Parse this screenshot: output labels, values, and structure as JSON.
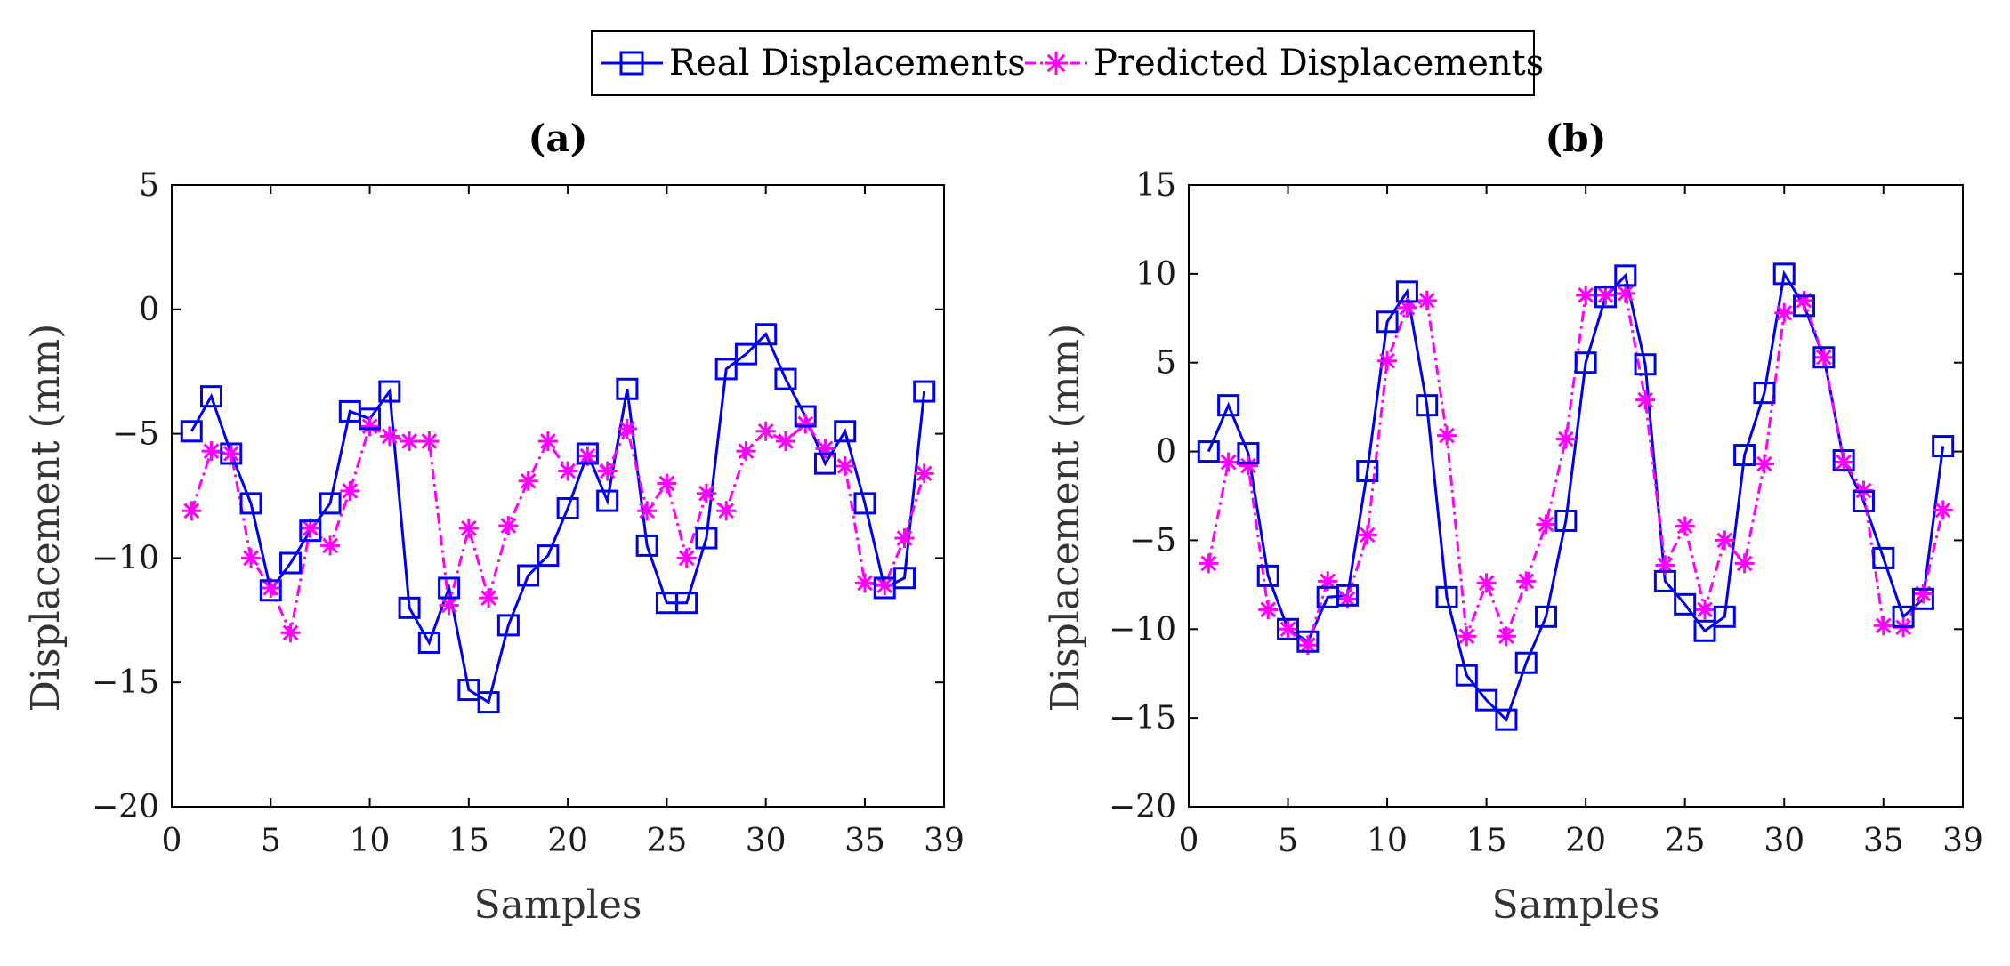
{
  "legend": {
    "real_label": "Real Displacements",
    "pred_label": "Predicted Displacements",
    "real_color": "#0000ee",
    "pred_color": "#ff00ff"
  },
  "chart_data": [
    {
      "type": "line",
      "title": "(a)",
      "xlabel": "Samples",
      "ylabel": "Displacement (mm)",
      "xlim": [
        0,
        39
      ],
      "ylim": [
        -20,
        5
      ],
      "xticks": [
        0,
        5,
        10,
        15,
        20,
        25,
        30,
        35,
        39
      ],
      "yticks": [
        5,
        0,
        -5,
        -10,
        -15,
        -20
      ],
      "ytick_labels": [
        "5",
        "0",
        "−5",
        "−10",
        "−15",
        "−20"
      ],
      "x": [
        1,
        2,
        3,
        4,
        5,
        6,
        7,
        8,
        9,
        10,
        11,
        12,
        13,
        14,
        15,
        16,
        17,
        18,
        19,
        20,
        21,
        22,
        23,
        24,
        25,
        26,
        27,
        28,
        29,
        30,
        31,
        32,
        33,
        34,
        35,
        36,
        37,
        38
      ],
      "series": [
        {
          "name": "Real Displacements",
          "marker": "square",
          "line": "solid",
          "values": [
            -4.9,
            -3.5,
            -5.8,
            -7.8,
            -11.3,
            -10.2,
            -8.9,
            -7.8,
            -4.1,
            -4.4,
            -3.3,
            -12.0,
            -13.4,
            -11.2,
            -15.3,
            -15.8,
            -12.7,
            -10.7,
            -9.9,
            -8.0,
            -5.8,
            -7.7,
            -3.2,
            -9.5,
            -11.8,
            -11.8,
            -9.2,
            -2.4,
            -1.8,
            -1.0,
            -2.8,
            -4.3,
            -6.2,
            -4.9,
            -7.8,
            -11.2,
            -10.8,
            -3.3
          ]
        },
        {
          "name": "Predicted Displacements",
          "marker": "asterisk",
          "line": "dashdot",
          "values": [
            -8.1,
            -5.7,
            -5.8,
            -10.0,
            -11.2,
            -13.0,
            -8.8,
            -9.5,
            -7.3,
            -4.7,
            -5.1,
            -5.3,
            -5.3,
            -11.9,
            -8.8,
            -11.6,
            -8.7,
            -6.9,
            -5.3,
            -6.5,
            -5.9,
            -6.5,
            -4.8,
            -8.1,
            -7.0,
            -10.0,
            -7.4,
            -8.1,
            -5.7,
            -4.9,
            -5.3,
            -4.6,
            -5.6,
            -6.3,
            -11.0,
            -11.1,
            -9.2,
            -6.6
          ]
        }
      ]
    },
    {
      "type": "line",
      "title": "(b)",
      "xlabel": "Samples",
      "ylabel": "Displacement (mm)",
      "xlim": [
        0,
        39
      ],
      "ylim": [
        -20,
        15
      ],
      "xticks": [
        0,
        5,
        10,
        15,
        20,
        25,
        30,
        35,
        39
      ],
      "yticks": [
        15,
        10,
        5,
        0,
        -5,
        -10,
        -15,
        -20
      ],
      "ytick_labels": [
        "15",
        "10",
        "5",
        "0",
        "−5",
        "−10",
        "−15",
        "−20"
      ],
      "x": [
        1,
        2,
        3,
        4,
        5,
        6,
        7,
        8,
        9,
        10,
        11,
        12,
        13,
        14,
        15,
        16,
        17,
        18,
        19,
        20,
        21,
        22,
        23,
        24,
        25,
        26,
        27,
        28,
        29,
        30,
        31,
        32,
        33,
        34,
        35,
        36,
        37,
        38
      ],
      "series": [
        {
          "name": "Real Displacements",
          "marker": "square",
          "line": "solid",
          "values": [
            0.0,
            2.6,
            -0.1,
            -7.0,
            -10.0,
            -10.7,
            -8.2,
            -8.1,
            -1.1,
            7.3,
            9.0,
            2.6,
            -8.2,
            -12.6,
            -14.0,
            -15.1,
            -11.9,
            -9.3,
            -3.9,
            5.0,
            8.7,
            9.9,
            4.9,
            -7.3,
            -8.6,
            -10.1,
            -9.3,
            -0.2,
            3.3,
            10.0,
            8.2,
            5.3,
            -0.5,
            -2.8,
            -6.0,
            -9.3,
            -8.3,
            0.3
          ]
        },
        {
          "name": "Predicted Displacements",
          "marker": "asterisk",
          "line": "dashdot",
          "values": [
            -6.3,
            -0.6,
            -0.8,
            -8.9,
            -10.0,
            -10.9,
            -7.3,
            -8.3,
            -4.7,
            5.1,
            8.1,
            8.5,
            0.9,
            -10.4,
            -7.4,
            -10.4,
            -7.3,
            -4.1,
            0.7,
            8.8,
            8.8,
            8.9,
            2.9,
            -6.4,
            -4.2,
            -8.9,
            -5.0,
            -6.3,
            -0.7,
            7.8,
            8.5,
            5.3,
            -0.6,
            -2.2,
            -9.8,
            -9.9,
            -8.0,
            -3.3
          ]
        }
      ]
    }
  ]
}
